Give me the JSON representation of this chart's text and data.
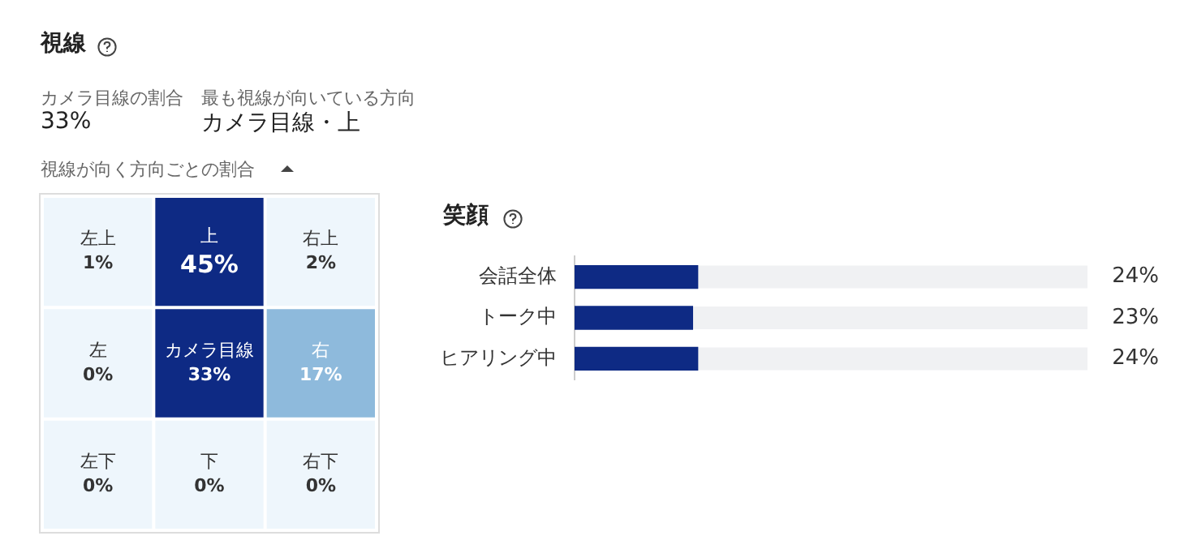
{
  "chart_data": [
    {
      "type": "heatmap",
      "title": "視線",
      "subtitle": "視線が向く方向ごとの割合",
      "annotations": [
        "カメラ目線の割合",
        "33%",
        "最も視線が向いている方向",
        "カメラ目線・上",
        "左上",
        "上",
        "右上",
        "左",
        "カメラ目線",
        "右",
        "左下",
        "下",
        "右下"
      ],
      "categories": [
        null,
        null,
        null
      ],
      "y_categories": [
        null,
        null,
        null
      ],
      "cells": [
        [
          1,
          45,
          2
        ],
        [
          0,
          33,
          17
        ],
        [
          0,
          0,
          0
        ]
      ],
      "cell_labels": [
        [
          "1%",
          "45%",
          "2%"
        ],
        [
          "0%",
          "33%",
          "17%"
        ],
        [
          "0%",
          "0%",
          "0%"
        ]
      ],
      "colors": [
        "#eef6fc",
        "#0e2a84",
        "#eef6fc",
        "#eef6fc",
        "#0e2a84",
        "#8ebadc",
        "#eef6fc",
        "#eef6fc",
        "#eef6fc"
      ]
    },
    {
      "type": "bar",
      "orientation": "horizontal",
      "title": "笑顔",
      "categories": [
        "会話全体",
        "トーク中",
        "ヒアリング中"
      ],
      "values": [
        24,
        23,
        24
      ],
      "color": "#0e2a84",
      "value_labels": [
        "24%",
        "23%",
        "24%"
      ],
      "xlim": [
        0,
        100
      ],
      "tick_labels": "y",
      "grid": false,
      "legend": false
    }
  ]
}
